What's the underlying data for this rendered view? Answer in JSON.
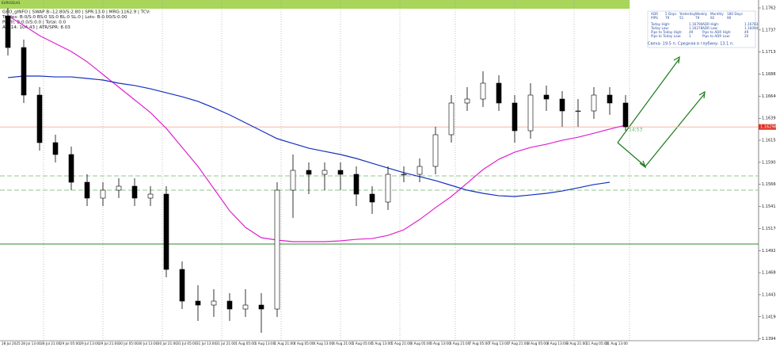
{
  "chart_data": {
    "type": "candlestick",
    "symbol": "EURUSD,H1",
    "header_lines": [
      "GEO_gINFO | SWAP B:-12.80/S:2.80 | SPR:13.0 | MRG:1162.9 | TCV:",
      "Trades: B:0/S:0 BS:0 SS:0 BL:0 SL:0 | Lots: B:0.00/S:0.00",
      "Profit: B:0.0/S:0.0 | Total: 0.0",
      "ATR14: 104.43 | ATR/SPR: 8.03"
    ],
    "timer": "14:53",
    "current_price": 1.16298,
    "info_panel": {
      "header": [
        "ADR",
        "5 Days",
        "Yesterday",
        "Weekly",
        "Monthly",
        "180 Days"
      ],
      "rows": [
        [
          "PIPS",
          "79",
          "51",
          "79",
          "92",
          "90"
        ]
      ],
      "stats": [
        [
          "Today High:",
          "1.16790",
          "ADR High:",
          "1.16783"
        ],
        [
          "Today Low:",
          "1.16278",
          "ADR Low:",
          "1.16094"
        ],
        [
          "Pips to Today High:",
          "49",
          "Pips to ADR High:",
          "49"
        ],
        [
          "Pips to Today Low:",
          "1",
          "Pips to ADR Low:",
          "20"
        ]
      ],
      "note": "Свеча: 19.5 п.  Средняя в глубину: 13.1 п."
    },
    "time_labels": [
      "28 Jul 2025",
      "28 Jul 13:00",
      "28 Jul 21:00",
      "29 Jul 05:00",
      "29 Jul 13:00",
      "29 Jul 21:00",
      "30 Jul 05:00",
      "30 Jul 13:00",
      "30 Jul 21:00",
      "31 Jul 05:00",
      "31 Jul 13:00",
      "31 Jul 21:00",
      "1 Aug 05:00",
      "1 Aug 13:00",
      "1 Aug 21:00",
      "4 Aug 05:00",
      "4 Aug 13:00",
      "4 Aug 21:00",
      "5 Aug 05:00",
      "5 Aug 13:00",
      "5 Aug 21:00",
      "6 Aug 05:00",
      "6 Aug 13:00",
      "6 Aug 21:00",
      "7 Aug 05:00",
      "7 Aug 13:00",
      "7 Aug 21:00",
      "8 Aug 05:00",
      "8 Aug 13:00",
      "8 Aug 21:00",
      "11 Aug 05:00",
      "11 Aug 13:00"
    ],
    "ylim": [
      1.13845,
      1.17708
    ],
    "yticks": [
      1.13945,
      {
        "value": 1.1419,
        "label": "1.14190"
      },
      1.14435,
      {
        "value": 1.1468,
        "label": "1.14680"
      },
      1.14925,
      {
        "value": 1.1517,
        "label": "1.15170"
      },
      1.15415,
      {
        "value": 1.1566,
        "label": "1.15660"
      },
      1.15905,
      {
        "value": 1.1615,
        "label": "1.16150"
      },
      1.16395,
      {
        "value": 1.1664,
        "label": "1.16640"
      },
      1.16885,
      {
        "value": 1.1713,
        "label": "1.17130"
      },
      1.17375,
      {
        "value": 1.1762,
        "label": "1.17620"
      }
    ],
    "open": [
      1.17532,
      1.1718,
      1.16652,
      1.16124,
      1.15992,
      1.15684,
      1.15508,
      1.15596,
      1.1564,
      1.15508,
      1.15552,
      1.14716,
      1.14364,
      1.1432,
      1.14364,
      1.14276,
      1.1432,
      1.14276,
      1.15596,
      1.15816,
      1.15772,
      1.15816,
      1.15772,
      1.15552,
      1.15464,
      1.15772,
      1.15772,
      1.1586,
      1.16212,
      1.16564,
      1.16608,
      1.16784,
      1.16564,
      1.16256,
      1.16652,
      1.16608,
      1.16476,
      1.16476,
      1.16652,
      1.16564
    ],
    "high": [
      1.1762,
      1.17268,
      1.1674,
      1.16212,
      1.1608,
      1.15772,
      1.15684,
      1.15728,
      1.15728,
      1.1564,
      1.1564,
      1.14804,
      1.1454,
      1.14496,
      1.14452,
      1.14496,
      1.14452,
      1.15684,
      1.15992,
      1.15904,
      1.15904,
      1.15904,
      1.1586,
      1.1564,
      1.1586,
      1.1586,
      1.15948,
      1.163,
      1.16652,
      1.1674,
      1.16916,
      1.16872,
      1.16652,
      1.16784,
      1.16758,
      1.16696,
      1.16608,
      1.1674,
      1.1674,
      1.16652
    ],
    "low": [
      1.17092,
      1.16564,
      1.16036,
      1.15904,
      1.15596,
      1.1542,
      1.1542,
      1.15508,
      1.1542,
      1.1542,
      1.14628,
      1.14276,
      1.14144,
      1.14188,
      1.14144,
      1.14188,
      1.14012,
      1.14188,
      1.15288,
      1.15552,
      1.15596,
      1.15596,
      1.1542,
      1.15332,
      1.15376,
      1.15684,
      1.15684,
      1.15772,
      1.16124,
      1.16476,
      1.1652,
      1.16476,
      1.16124,
      1.16168,
      1.16476,
      1.163,
      1.163,
      1.16388,
      1.16432,
      1.16256
    ],
    "close": [
      1.1718,
      1.16652,
      1.16124,
      1.15992,
      1.15684,
      1.15508,
      1.15596,
      1.1564,
      1.15508,
      1.15552,
      1.14716,
      1.14364,
      1.1432,
      1.14364,
      1.14276,
      1.1432,
      1.14276,
      1.15596,
      1.15816,
      1.15772,
      1.15816,
      1.15772,
      1.15552,
      1.15464,
      1.15772,
      1.15772,
      1.1586,
      1.16212,
      1.16564,
      1.16608,
      1.16784,
      1.16564,
      1.16256,
      1.16652,
      1.16608,
      1.16476,
      1.16476,
      1.16652,
      1.16564,
      1.163
    ],
    "series": [
      {
        "color": "#e020d0",
        "values": [
          1.17532,
          1.17426,
          1.17312,
          1.17224,
          1.17136,
          1.17022,
          1.16881,
          1.1674,
          1.16599,
          1.16458,
          1.16282,
          1.16071,
          1.1586,
          1.15614,
          1.15367,
          1.15182,
          1.15068,
          1.15042,
          1.15024,
          1.15024,
          1.15024,
          1.15033,
          1.1505,
          1.15059,
          1.15094,
          1.15156,
          1.1527,
          1.15402,
          1.15526,
          1.15675,
          1.15825,
          1.15939,
          1.16018,
          1.16071,
          1.16106,
          1.1615,
          1.16184,
          1.16228,
          1.16274,
          1.16318
        ]
      },
      {
        "color": "#1530c0",
        "values": [
          1.16846,
          1.16863,
          1.16863,
          1.16854,
          1.16854,
          1.16837,
          1.16819,
          1.16784,
          1.16758,
          1.16722,
          1.16678,
          1.16634,
          1.16582,
          1.16511,
          1.16432,
          1.16344,
          1.16256,
          1.16168,
          1.16115,
          1.16062,
          1.16027,
          1.15992,
          1.15948,
          1.15895,
          1.15842,
          1.1579,
          1.15746,
          1.15702,
          1.15649,
          1.15596,
          1.15561,
          1.15534,
          1.15526,
          1.15543,
          1.15561,
          1.15587,
          1.15622,
          1.15658,
          1.15684,
          null
        ]
      }
    ],
    "levels": [
      {
        "value": 1.15754,
        "color": "#8fca8f",
        "dash": true
      },
      {
        "value": 1.15596,
        "color": "#8fca8f",
        "dash": true
      },
      {
        "value": 1.14998,
        "color": "#2e8b2e",
        "dash": false
      }
    ]
  }
}
